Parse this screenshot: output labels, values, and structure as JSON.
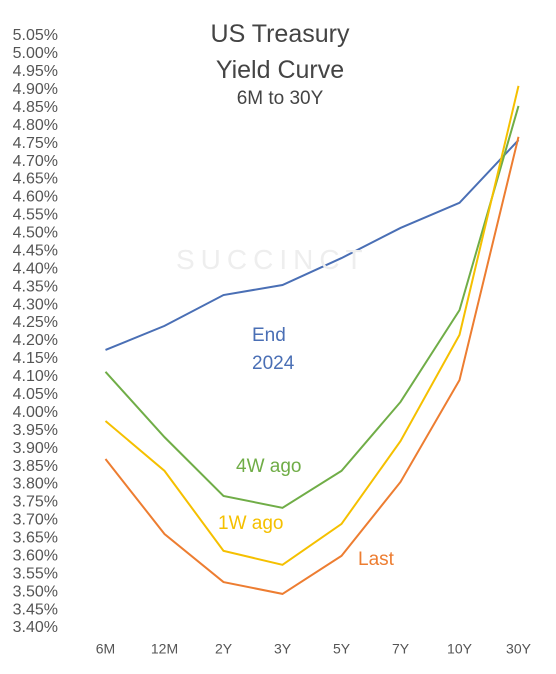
{
  "chart_data": {
    "type": "line",
    "title": "US Treasury Yield Curve",
    "subtitle": "6M to 30Y",
    "watermark": "SUCCINCT",
    "categories": [
      "6M",
      "12M",
      "2Y",
      "3Y",
      "5Y",
      "7Y",
      "10Y",
      "30Y"
    ],
    "series": [
      {
        "name": "End 2024",
        "color": "#4a6fb5",
        "values": [
          4.175,
          4.242,
          4.328,
          4.356,
          4.431,
          4.515,
          4.585,
          4.76
        ]
      },
      {
        "name": "4W ago",
        "color": "#70ad47",
        "values": [
          4.114,
          3.932,
          3.768,
          3.735,
          3.838,
          4.03,
          4.286,
          4.855
        ]
      },
      {
        "name": "1W ago",
        "color": "#f5c000",
        "values": [
          3.977,
          3.838,
          3.615,
          3.576,
          3.69,
          3.921,
          4.217,
          4.911
        ]
      },
      {
        "name": "Last",
        "color": "#ed7d31",
        "values": [
          3.871,
          3.662,
          3.528,
          3.495,
          3.601,
          3.807,
          4.091,
          4.769
        ]
      }
    ],
    "ylim": [
      3.4,
      5.05
    ],
    "yticks": [
      {
        "value": 3.4,
        "label": "3.40%"
      },
      {
        "value": 3.45,
        "label": "3.45%"
      },
      {
        "value": 3.5,
        "label": "3.50%"
      },
      {
        "value": 3.55,
        "label": "3.55%"
      },
      {
        "value": 3.6,
        "label": "3.60%"
      },
      {
        "value": 3.65,
        "label": "3.65%"
      },
      {
        "value": 3.7,
        "label": "3.70%"
      },
      {
        "value": 3.75,
        "label": "3.75%"
      },
      {
        "value": 3.8,
        "label": "3.80%"
      },
      {
        "value": 3.85,
        "label": "3.85%"
      },
      {
        "value": 3.9,
        "label": "3.90%"
      },
      {
        "value": 3.95,
        "label": "3.95%"
      },
      {
        "value": 4.0,
        "label": "4.00%"
      },
      {
        "value": 4.05,
        "label": "4.05%"
      },
      {
        "value": 4.1,
        "label": "4.10%"
      },
      {
        "value": 4.15,
        "label": "4.15%"
      },
      {
        "value": 4.2,
        "label": "4.20%"
      },
      {
        "value": 4.25,
        "label": "4.25%"
      },
      {
        "value": 4.3,
        "label": "4.30%"
      },
      {
        "value": 4.35,
        "label": "4.35%"
      },
      {
        "value": 4.4,
        "label": "4.40%"
      },
      {
        "value": 4.45,
        "label": "4.45%"
      },
      {
        "value": 4.5,
        "label": "4.50%"
      },
      {
        "value": 4.55,
        "label": "4.55%"
      },
      {
        "value": 4.6,
        "label": "4.60%"
      },
      {
        "value": 4.65,
        "label": "4.65%"
      },
      {
        "value": 4.7,
        "label": "4.70%"
      },
      {
        "value": 4.75,
        "label": "4.75%"
      },
      {
        "value": 4.8,
        "label": "4.80%"
      },
      {
        "value": 4.85,
        "label": "4.85%"
      },
      {
        "value": 4.9,
        "label": "4.90%"
      },
      {
        "value": 4.95,
        "label": "4.95%"
      },
      {
        "value": 5.0,
        "label": "5.00%"
      },
      {
        "value": 5.05,
        "label": "5.05%"
      }
    ],
    "grid": false
  }
}
